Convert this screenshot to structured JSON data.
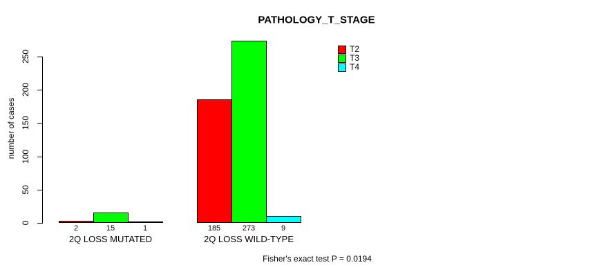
{
  "chart_data": {
    "type": "bar",
    "title": "PATHOLOGY_T_STAGE",
    "ylabel": "number of cases",
    "xlabel": "",
    "ylim": [
      0,
      273
    ],
    "yticks": [
      0,
      50,
      100,
      150,
      200,
      250
    ],
    "grid": false,
    "legend_position": "top-right",
    "categories": [
      "2Q LOSS MUTATED",
      "2Q LOSS WILD-TYPE"
    ],
    "series": [
      {
        "name": "T2",
        "color": "#ff0000",
        "values": [
          2,
          185
        ]
      },
      {
        "name": "T3",
        "color": "#00ff00",
        "values": [
          15,
          273
        ]
      },
      {
        "name": "T4",
        "color": "#00ffff",
        "values": [
          1,
          9
        ]
      }
    ],
    "bar_value_labels": [
      [
        2,
        15,
        1
      ],
      [
        185,
        273,
        9
      ]
    ],
    "annotation": "Fisher's exact test P = 0.0194",
    "axis_color": "#000000",
    "bar_border_color": "#000000"
  }
}
